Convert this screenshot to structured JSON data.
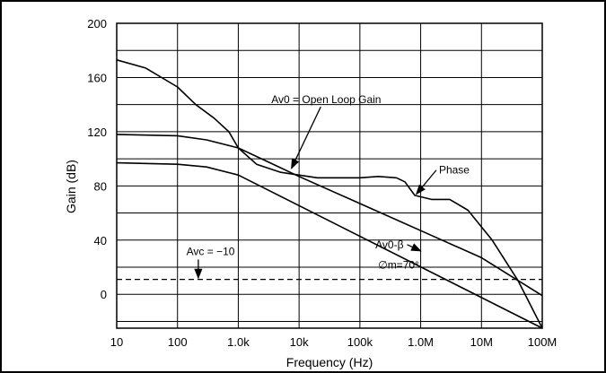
{
  "chart_data": {
    "type": "line",
    "title": "",
    "xlabel": "Frequency (Hz)",
    "ylabel": "Gain (dB)",
    "x_scale": "log",
    "xlim": [
      10,
      100000000
    ],
    "ylim": [
      -25,
      200
    ],
    "grid": true,
    "legend": "none",
    "x_ticks": [
      {
        "value": 10,
        "label": "10"
      },
      {
        "value": 100,
        "label": "100"
      },
      {
        "value": 1000,
        "label": "1.0k"
      },
      {
        "value": 10000,
        "label": "10k"
      },
      {
        "value": 100000,
        "label": "100k"
      },
      {
        "value": 1000000,
        "label": "1.0M"
      },
      {
        "value": 10000000,
        "label": "10M"
      },
      {
        "value": 100000000,
        "label": "100M"
      }
    ],
    "y_ticks": [
      {
        "value": 200,
        "label": "200"
      },
      {
        "value": 160,
        "label": "160"
      },
      {
        "value": 120,
        "label": "120"
      },
      {
        "value": 80,
        "label": "80"
      },
      {
        "value": 40,
        "label": "40"
      },
      {
        "value": 0,
        "label": "0"
      }
    ],
    "series": [
      {
        "key": "open-loop-gain",
        "style": "solid",
        "points": [
          [
            10,
            118
          ],
          [
            100,
            117
          ],
          [
            300,
            114
          ],
          [
            1000,
            108
          ],
          [
            3000,
            98
          ],
          [
            10000,
            87
          ],
          [
            100000,
            67
          ],
          [
            1000000,
            47
          ],
          [
            10000000,
            27
          ],
          [
            100000000,
            -1
          ]
        ]
      },
      {
        "key": "phase",
        "style": "solid",
        "points": [
          [
            10,
            173
          ],
          [
            30,
            167
          ],
          [
            100,
            153
          ],
          [
            200,
            140
          ],
          [
            400,
            130
          ],
          [
            700,
            120
          ],
          [
            1000,
            108
          ],
          [
            2000,
            96
          ],
          [
            5000,
            90
          ],
          [
            20000,
            86
          ],
          [
            100000,
            86
          ],
          [
            200000,
            87
          ],
          [
            400000,
            86
          ],
          [
            550000,
            83
          ],
          [
            800000,
            73
          ],
          [
            1500000,
            70
          ],
          [
            3000000,
            70
          ],
          [
            6000000,
            62
          ],
          [
            15000000,
            40
          ],
          [
            40000000,
            10
          ],
          [
            100000000,
            -25
          ]
        ]
      },
      {
        "key": "av0-beta",
        "style": "solid",
        "points": [
          [
            10,
            97
          ],
          [
            100,
            96
          ],
          [
            300,
            94
          ],
          [
            1000,
            88
          ],
          [
            100000000,
            -25
          ]
        ]
      },
      {
        "key": "avc",
        "style": "dashed",
        "points": [
          [
            10,
            11
          ],
          [
            100000000,
            11
          ]
        ]
      }
    ],
    "annotations": [
      {
        "key": "ann-av0",
        "text": "Av0 = Open Loop Gain",
        "label_x": 3500,
        "label_y": 141,
        "arrow_to": [
          7500,
          93
        ]
      },
      {
        "key": "ann-phase",
        "text": "Phase",
        "label_x": 2000000,
        "label_y": 89,
        "arrow_to": [
          850000,
          74
        ]
      },
      {
        "key": "ann-av0beta",
        "text": "Av0-β",
        "label_x": 180000,
        "label_y": 34,
        "arrow_to": [
          1000000,
          32
        ]
      },
      {
        "key": "ann-phase-margin",
        "text": "∅m=70°",
        "label_x": 200000,
        "label_y": 19,
        "arrow_to": null
      },
      {
        "key": "ann-avc",
        "text": "Avc = −10",
        "label_x": 140,
        "label_y": 29,
        "arrow_to": [
          220,
          12
        ]
      }
    ]
  }
}
